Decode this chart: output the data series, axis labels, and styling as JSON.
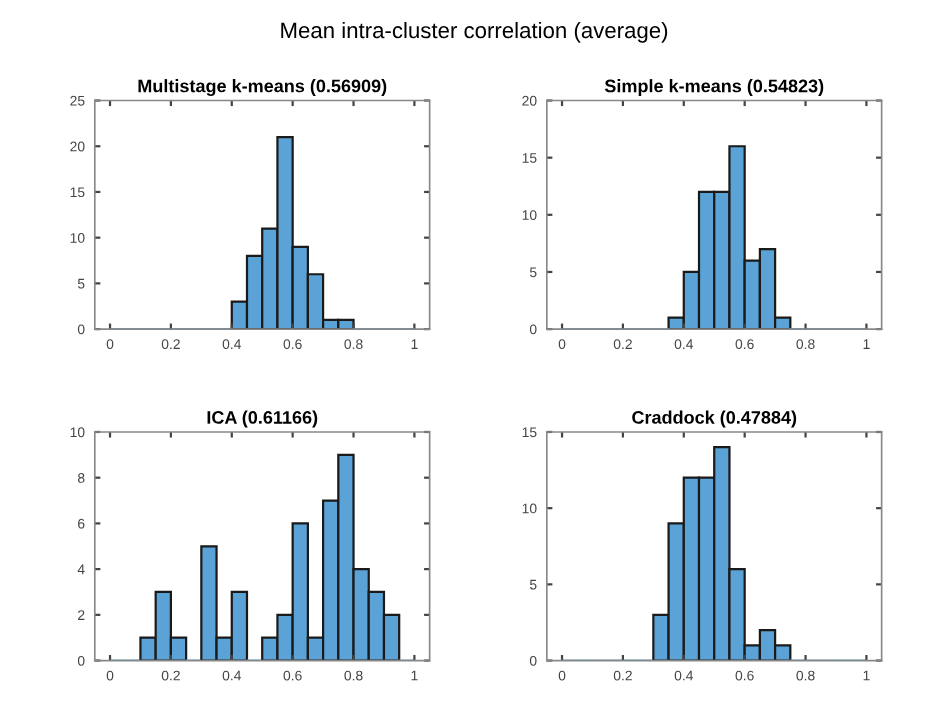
{
  "chart_data": [
    {
      "type": "histogram",
      "title": "Multistage k-means (0.56909)",
      "annotations": [
        "Mean intra-cluster correlation (average)"
      ],
      "color": "#5ba3d6",
      "bins": [
        0,
        0.05,
        0.1,
        0.15,
        0.2,
        0.25,
        0.3,
        0.35,
        0.4,
        0.45,
        0.5,
        0.55,
        0.6,
        0.65,
        0.7,
        0.75,
        0.8,
        0.85,
        0.9,
        0.95,
        1
      ],
      "values": [
        0,
        0,
        0,
        0,
        0,
        0,
        0,
        0,
        3,
        8,
        11,
        21,
        9,
        6,
        1,
        1,
        0,
        0,
        0,
        0
      ],
      "xlim": [
        -0.05,
        1.05
      ],
      "xticks": [
        0,
        0.2,
        0.4,
        0.6,
        0.8,
        1
      ],
      "ylim": [
        0,
        25
      ],
      "yticks": [
        0,
        5,
        10,
        15,
        20,
        25
      ],
      "grid": false,
      "legend": false
    },
    {
      "type": "histogram",
      "title": "Simple k-means (0.54823)",
      "color": "#5ba3d6",
      "bins": [
        0,
        0.05,
        0.1,
        0.15,
        0.2,
        0.25,
        0.3,
        0.35,
        0.4,
        0.45,
        0.5,
        0.55,
        0.6,
        0.65,
        0.7,
        0.75,
        0.8,
        0.85,
        0.9,
        0.95,
        1
      ],
      "values": [
        0,
        0,
        0,
        0,
        0,
        0,
        0,
        1,
        5,
        12,
        12,
        16,
        6,
        7,
        1,
        0,
        0,
        0,
        0,
        0
      ],
      "xlim": [
        -0.05,
        1.05
      ],
      "xticks": [
        0,
        0.2,
        0.4,
        0.6,
        0.8,
        1
      ],
      "ylim": [
        0,
        20
      ],
      "yticks": [
        0,
        5,
        10,
        15,
        20
      ],
      "grid": false,
      "legend": false
    },
    {
      "type": "histogram",
      "title": "ICA (0.61166)",
      "color": "#5ba3d6",
      "bins": [
        0,
        0.05,
        0.1,
        0.15,
        0.2,
        0.25,
        0.3,
        0.35,
        0.4,
        0.45,
        0.5,
        0.55,
        0.6,
        0.65,
        0.7,
        0.75,
        0.8,
        0.85,
        0.9,
        0.95,
        1
      ],
      "values": [
        0,
        0,
        1,
        3,
        1,
        0,
        5,
        1,
        3,
        0,
        1,
        2,
        6,
        1,
        7,
        9,
        4,
        3,
        2,
        0
      ],
      "xlim": [
        -0.05,
        1.05
      ],
      "xticks": [
        0,
        0.2,
        0.4,
        0.6,
        0.8,
        1
      ],
      "ylim": [
        0,
        10
      ],
      "yticks": [
        0,
        2,
        4,
        6,
        8,
        10
      ],
      "grid": false,
      "legend": false
    },
    {
      "type": "histogram",
      "title": "Craddock (0.47884)",
      "color": "#5ba3d6",
      "bins": [
        0,
        0.05,
        0.1,
        0.15,
        0.2,
        0.25,
        0.3,
        0.35,
        0.4,
        0.45,
        0.5,
        0.55,
        0.6,
        0.65,
        0.7,
        0.75,
        0.8,
        0.85,
        0.9,
        0.95,
        1
      ],
      "values": [
        0,
        0,
        0,
        0,
        0,
        0,
        3,
        9,
        12,
        12,
        14,
        6,
        1,
        2,
        1,
        0,
        0,
        0,
        0,
        0
      ],
      "xlim": [
        -0.05,
        1.05
      ],
      "xticks": [
        0,
        0.2,
        0.4,
        0.6,
        0.8,
        1
      ],
      "ylim": [
        0,
        15
      ],
      "yticks": [
        0,
        5,
        10,
        15
      ],
      "grid": false,
      "legend": false
    }
  ]
}
